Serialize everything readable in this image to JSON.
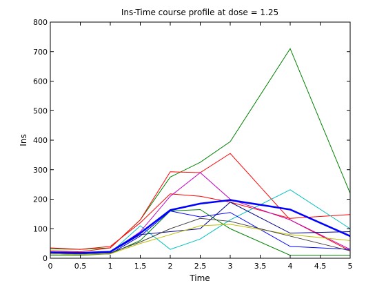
{
  "chart_data": {
    "type": "line",
    "title": "Ins-Time course profile at dose = 1.25",
    "xlabel": "Time",
    "ylabel": "Ins",
    "xlim": [
      0,
      5
    ],
    "ylim": [
      0,
      800
    ],
    "xticks": [
      "0",
      "0.5",
      "1",
      "1.5",
      "2",
      "2.5",
      "3",
      "3.5",
      "4",
      "4.5",
      "5"
    ],
    "yticks": [
      "0",
      "100",
      "200",
      "300",
      "400",
      "500",
      "600",
      "700",
      "800"
    ],
    "grid": false,
    "x": [
      0,
      0.5,
      1,
      1.5,
      2,
      2.5,
      3,
      4,
      5
    ],
    "series": [
      {
        "color": "#008000",
        "width": 1,
        "values": [
          32,
          30,
          35,
          130,
          275,
          325,
          395,
          710,
          220
        ]
      },
      {
        "color": "#ff0000",
        "width": 1,
        "values": [
          25,
          22,
          35,
          130,
          293,
          290,
          355,
          130,
          25
        ]
      },
      {
        "color": "#ff0000",
        "width": 1,
        "values": [
          35,
          30,
          40,
          120,
          218,
          210,
          190,
          135,
          148
        ]
      },
      {
        "color": "#00bfbf",
        "width": 1,
        "values": [
          20,
          15,
          18,
          110,
          30,
          65,
          130,
          232,
          100
        ]
      },
      {
        "color": "#bf00bf",
        "width": 1,
        "values": [
          15,
          15,
          20,
          90,
          210,
          290,
          200,
          130,
          30
        ]
      },
      {
        "color": "#008000",
        "width": 1,
        "values": [
          10,
          10,
          15,
          60,
          160,
          165,
          100,
          10,
          10
        ]
      },
      {
        "color": "#0000ff",
        "width": 1,
        "values": [
          15,
          12,
          15,
          75,
          160,
          140,
          155,
          40,
          30
        ]
      },
      {
        "color": "#00008b",
        "width": 1,
        "values": [
          20,
          15,
          20,
          80,
          90,
          100,
          190,
          85,
          90
        ]
      },
      {
        "color": "#bfbf00",
        "width": 1,
        "values": [
          15,
          12,
          15,
          50,
          80,
          110,
          115,
          80,
          60
        ]
      },
      {
        "color": "#404040",
        "width": 1,
        "values": [
          18,
          15,
          18,
          55,
          100,
          135,
          125,
          75,
          25
        ]
      },
      {
        "color": "#0000ff",
        "width": 2.5,
        "values": [
          20,
          18,
          22,
          85,
          163,
          185,
          197,
          165,
          75
        ]
      }
    ]
  }
}
